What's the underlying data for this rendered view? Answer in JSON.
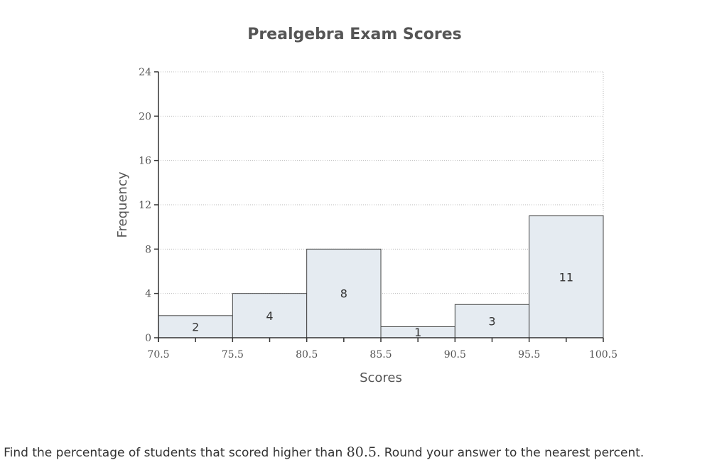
{
  "chart_data": {
    "type": "histogram",
    "title": "Prealgebra Exam Scores",
    "xlabel": "Scores",
    "ylabel": "Frequency",
    "bin_edges": [
      70.5,
      75.5,
      80.5,
      85.5,
      90.5,
      95.5,
      100.5
    ],
    "x_tick_labels": [
      "70.5",
      "75.5",
      "80.5",
      "85.5",
      "90.5",
      "95.5",
      "100.5"
    ],
    "frequencies": [
      2,
      4,
      8,
      1,
      3,
      11
    ],
    "bar_labels": [
      "2",
      "4",
      "8",
      "1",
      "3",
      "11"
    ],
    "ylim": [
      0,
      24
    ],
    "y_ticks": [
      0,
      4,
      8,
      12,
      16,
      20,
      24
    ],
    "y_tick_labels": [
      "0",
      "4",
      "8",
      "12",
      "16",
      "20",
      "24"
    ],
    "grid": true,
    "bar_color": "#e5ebf1",
    "bar_edge_color": "#444444"
  },
  "question": {
    "prefix": ": Find the percentage of students that scored higher than ",
    "value": "80.5",
    "suffix": ". Round your answer to the nearest percent."
  }
}
